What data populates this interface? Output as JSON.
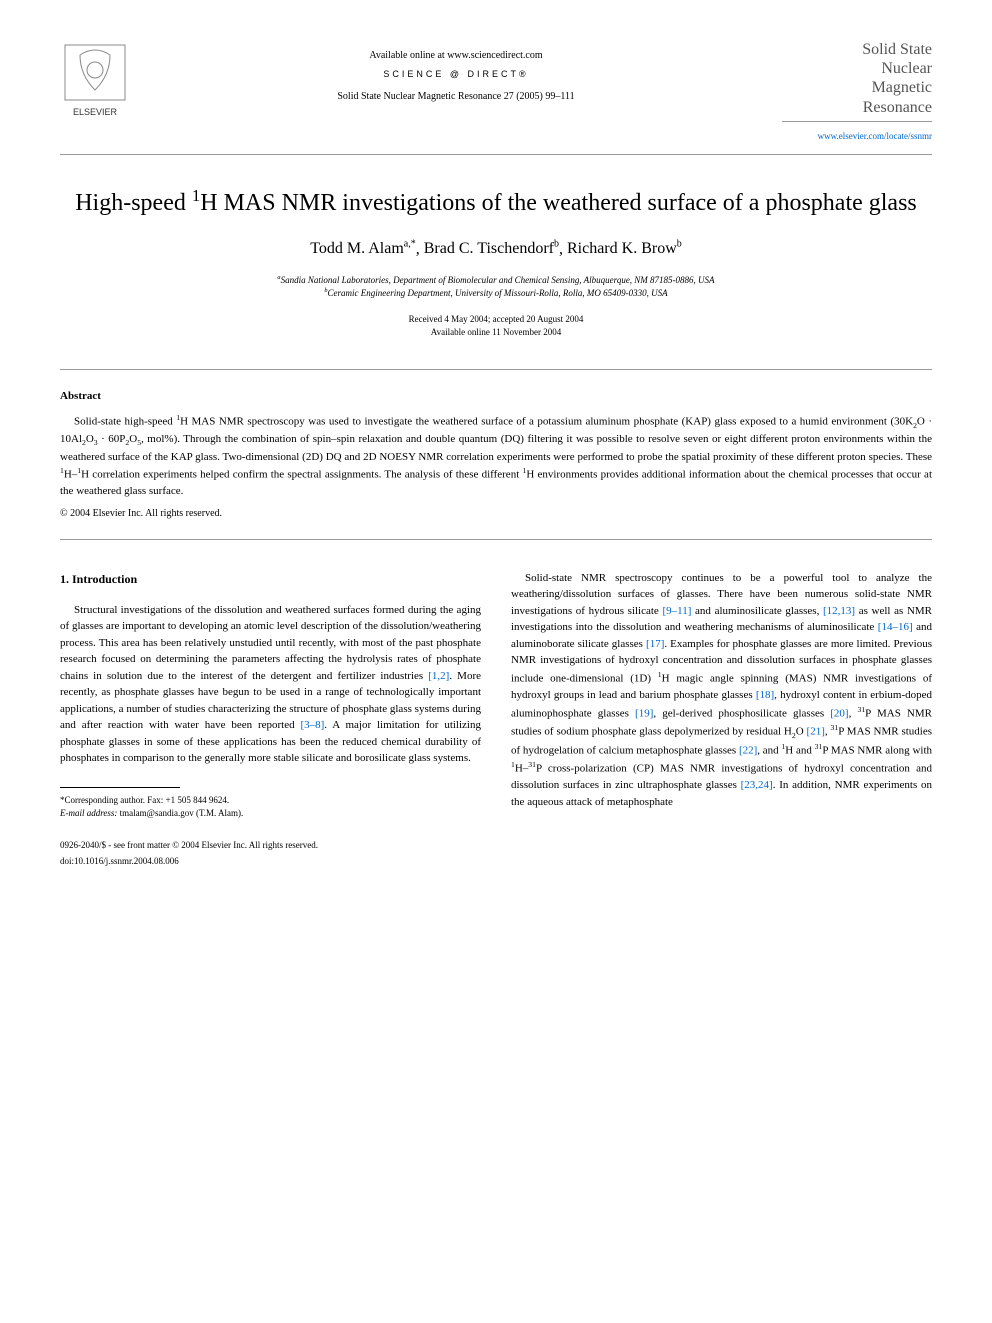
{
  "header": {
    "available_text": "Available online at www.sciencedirect.com",
    "science_direct": "SCIENCE @ DIRECT®",
    "journal_ref": "Solid State Nuclear Magnetic Resonance 27 (2005) 99–111",
    "journal_title_1": "Solid State",
    "journal_title_2": "Nuclear",
    "journal_title_3": "Magnetic",
    "journal_title_4": "Resonance",
    "journal_url": "www.elsevier.com/locate/ssnmr",
    "elsevier": "ELSEVIER"
  },
  "article": {
    "title_html": "High-speed <sup>1</sup>H MAS NMR investigations of the weathered surface of a phosphate glass",
    "author1": "Todd M. Alam",
    "author1_sup": "a,*",
    "author2": "Brad C. Tischendorf",
    "author2_sup": "b",
    "author3": "Richard K. Brow",
    "author3_sup": "b",
    "affiliation_a": "<sup>a</sup>Sandia National Laboratories, Department of Biomolecular and Chemical Sensing, Albuquerque, NM 87185-0886, USA",
    "affiliation_b": "<sup>b</sup>Ceramic Engineering Department, University of Missouri-Rolla, Rolla, MO 65409-0330, USA",
    "received": "Received 4 May 2004; accepted 20 August 2004",
    "available": "Available online 11 November 2004"
  },
  "abstract": {
    "heading": "Abstract",
    "text_html": "Solid-state high-speed <sup>1</sup>H MAS NMR spectroscopy was used to investigate the weathered surface of a potassium aluminum phosphate (KAP) glass exposed to a humid environment (30K<sub>2</sub>O · 10Al<sub>2</sub>O<sub>3</sub> · 60P<sub>2</sub>O<sub>5</sub>, mol%). Through the combination of spin–spin relaxation and double quantum (DQ) filtering it was possible to resolve seven or eight different proton environments within the weathered surface of the KAP glass. Two-dimensional (2D) DQ and 2D NOESY NMR correlation experiments were performed to probe the spatial proximity of these different proton species. These <sup>1</sup>H–<sup>1</sup>H correlation experiments helped confirm the spectral assignments. The analysis of these different <sup>1</sup>H environments provides additional information about the chemical processes that occur at the weathered glass surface.",
    "copyright": "© 2004 Elsevier Inc. All rights reserved."
  },
  "intro": {
    "heading": "1. Introduction",
    "para1_html": "Structural investigations of the dissolution and weathered surfaces formed during the aging of glasses are important to developing an atomic level description of the dissolution/weathering process. This area has been relatively unstudied until recently, with most of the past phosphate research focused on determining the parameters affecting the hydrolysis rates of phosphate chains in solution due to the interest of the detergent and fertilizer industries <span class=\"ref-link\">[1,2]</span>. More recently, as phosphate glasses have begun to be used in a range of technologically important applications, a number of studies characterizing the structure of phosphate glass systems during and after reaction with water have been reported <span class=\"ref-link\">[3–8]</span>. A major limitation for utilizing phosphate glasses in some of these applications has been the reduced chemical durability of phosphates in comparison to the generally more stable silicate and borosilicate glass systems.",
    "para2_html": "Solid-state NMR spectroscopy continues to be a powerful tool to analyze the weathering/dissolution surfaces of glasses. There have been numerous solid-state NMR investigations of hydrous silicate <span class=\"ref-link\">[9–11]</span> and aluminosilicate glasses, <span class=\"ref-link\">[12,13]</span> as well as NMR investigations into the dissolution and weathering mechanisms of aluminosilicate <span class=\"ref-link\">[14–16]</span> and aluminoborate silicate glasses <span class=\"ref-link\">[17]</span>. Examples for phosphate glasses are more limited. Previous NMR investigations of hydroxyl concentration and dissolution surfaces in phosphate glasses include one-dimensional (1D) <sup>1</sup>H magic angle spinning (MAS) NMR investigations of hydroxyl groups in lead and barium phosphate glasses <span class=\"ref-link\">[18]</span>, hydroxyl content in erbium-doped aluminophosphate glasses <span class=\"ref-link\">[19]</span>, gel-derived phosphosilicate glasses <span class=\"ref-link\">[20]</span>, <sup>31</sup>P MAS NMR studies of sodium phosphate glass depolymerized by residual H<sub>2</sub>O <span class=\"ref-link\">[21]</span>, <sup>31</sup>P MAS NMR studies of hydrogelation of calcium metaphosphate glasses <span class=\"ref-link\">[22]</span>, and <sup>1</sup>H and <sup>31</sup>P MAS NMR along with <sup>1</sup>H–<sup>31</sup>P cross-polarization (CP) MAS NMR investigations of hydroxyl concentration and dissolution surfaces in zinc ultraphosphate glasses <span class=\"ref-link\">[23,24]</span>. In addition, NMR experiments on the aqueous attack of metaphosphate"
  },
  "footnote": {
    "corresponding": "*Corresponding author. Fax: +1 505 844 9624.",
    "email_label": "E-mail address:",
    "email": "tmalam@sandia.gov (T.M. Alam)."
  },
  "footer": {
    "issn": "0926-2040/$ - see front matter © 2004 Elsevier Inc. All rights reserved.",
    "doi": "doi:10.1016/j.ssnmr.2004.08.006"
  }
}
